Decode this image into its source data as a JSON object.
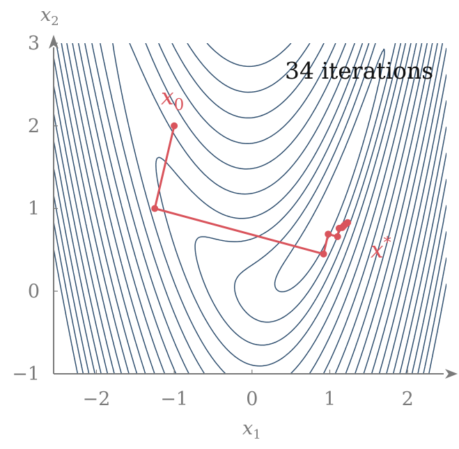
{
  "chart_data": {
    "type": "contour",
    "title": "",
    "xlabel": "x",
    "xlabel_sub": "1",
    "ylabel": "x",
    "ylabel_sub": "2",
    "xlim": [
      -2.55,
      2.5
    ],
    "ylim": [
      -1,
      3
    ],
    "x_ticks": [
      -2,
      -1,
      0,
      1,
      2
    ],
    "x_tick_labels": [
      "−2",
      "−1",
      "0",
      "1",
      "2"
    ],
    "y_ticks": [
      -1,
      0,
      1,
      2,
      3
    ],
    "y_tick_labels": [
      "−1",
      "0",
      "1",
      "2",
      "3"
    ],
    "contour_levels": [
      0.5,
      1.5,
      3,
      5,
      8,
      12,
      17,
      23,
      30,
      38,
      47,
      57,
      68,
      80,
      93,
      107,
      122,
      138,
      155,
      173,
      192
    ],
    "iterations_text": "34 iterations",
    "start_label": "x",
    "start_label_sub": "0",
    "optimum_label": "x",
    "optimum_label_sup": "*",
    "path": [
      {
        "x": -1.0,
        "y": 2.0
      },
      {
        "x": -1.25,
        "y": 1.0
      },
      {
        "x": 0.92,
        "y": 0.45
      },
      {
        "x": 0.98,
        "y": 0.69
      },
      {
        "x": 1.1,
        "y": 0.66
      },
      {
        "x": 1.12,
        "y": 0.76
      },
      {
        "x": 1.16,
        "y": 0.77
      },
      {
        "x": 1.18,
        "y": 0.79
      },
      {
        "x": 1.2,
        "y": 0.81
      },
      {
        "x": 1.22,
        "y": 0.82
      },
      {
        "x": 1.23,
        "y": 0.83
      }
    ],
    "colors": {
      "contour": "#2f4f6f",
      "path": "#d9545c",
      "axis": "#7a7a7a",
      "text": "#111111"
    }
  }
}
